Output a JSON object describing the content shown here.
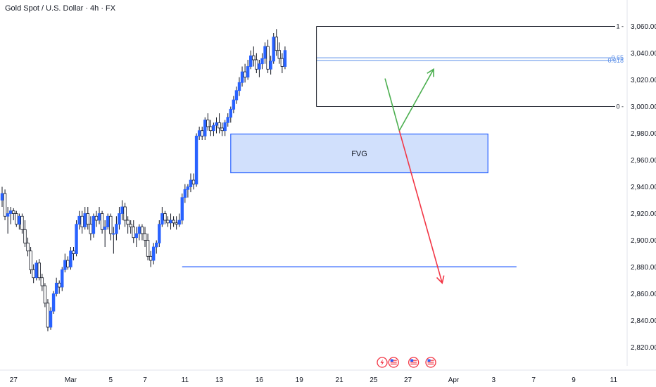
{
  "header": {
    "title": "Gold Spot / U.S. Dollar · 4h · FX"
  },
  "chart_data": {
    "type": "candlestick",
    "title": "Gold Spot / U.S. Dollar · 4h · FX",
    "ylim": [
      2810,
      3070
    ],
    "y_ticks": [
      2820,
      2840,
      2860,
      2880,
      2900,
      2920,
      2940,
      2960,
      2980,
      3000,
      3020,
      3040,
      3060
    ],
    "y_tick_labels": [
      "2,820.00",
      "2,840.00",
      "2,860.00",
      "2,880.00",
      "2,900.00",
      "2,920.00",
      "2,940.00",
      "2,960.00",
      "2,980.00",
      "3,000.00",
      "3,020.00",
      "3,040.00",
      "3,060.00"
    ],
    "x_tick_labels": [
      "27",
      "Mar",
      "5",
      "7",
      "11",
      "13",
      "16",
      "19",
      "21",
      "25",
      "27",
      "Apr",
      "3",
      "7",
      "9",
      "11"
    ],
    "x_tick_index": [
      4,
      24,
      38,
      50,
      64,
      76,
      90,
      104,
      118,
      130,
      142,
      158,
      172,
      186,
      200,
      214
    ],
    "colors": {
      "up": "#2962ff",
      "down": "#ffffff",
      "wick": "#131722",
      "fvg_fill": "#d1e0fc",
      "fvg_border": "#2962ff",
      "green_arrow": "#4caf50",
      "red_arrow": "#f23645",
      "fib_line": "#131722",
      "fib_blue": "#5b8fe8"
    },
    "fvg": {
      "label": "FVG",
      "top": 2979.5,
      "bottom": 2950.5,
      "start_index": 80,
      "end_index": 170
    },
    "support_line": {
      "value": 2880.2,
      "start_index": 63,
      "end_index": 180
    },
    "fib_levels": [
      {
        "label": "1",
        "value": 3060.0,
        "start_index": 110,
        "end_index": 214
      },
      {
        "label": "0.65",
        "value": 3036.5,
        "start_index": 110,
        "end_index": 214
      },
      {
        "label": "0.618",
        "value": 3034.5,
        "start_index": 110,
        "end_index": 214
      },
      {
        "label": "0",
        "value": 3000.0,
        "start_index": 110,
        "end_index": 214
      }
    ],
    "green_path": [
      {
        "index": 134,
        "value": 3021
      },
      {
        "index": 139,
        "value": 2982
      },
      {
        "index": 151,
        "value": 3028
      }
    ],
    "red_path": [
      {
        "index": 139,
        "value": 2982
      },
      {
        "index": 154,
        "value": 2868
      }
    ],
    "event_icons": [
      "lightning-icon",
      "us-flag-icon",
      "us-flag-icon",
      "us-flag-icon"
    ],
    "event_icon_index": [
      133,
      137,
      144,
      150
    ],
    "candles": [
      [
        2930,
        2940,
        2925,
        2935
      ],
      [
        2935,
        2938,
        2915,
        2918
      ],
      [
        2918,
        2925,
        2905,
        2920
      ],
      [
        2920,
        2925,
        2912,
        2922
      ],
      [
        2922,
        2924,
        2915,
        2920
      ],
      [
        2920,
        2922,
        2910,
        2912
      ],
      [
        2912,
        2920,
        2908,
        2918
      ],
      [
        2918,
        2920,
        2905,
        2908
      ],
      [
        2908,
        2915,
        2895,
        2898
      ],
      [
        2898,
        2902,
        2888,
        2892
      ],
      [
        2892,
        2895,
        2875,
        2878
      ],
      [
        2878,
        2882,
        2868,
        2872
      ],
      [
        2872,
        2885,
        2870,
        2883
      ],
      [
        2883,
        2886,
        2870,
        2872
      ],
      [
        2872,
        2875,
        2862,
        2866
      ],
      [
        2866,
        2868,
        2850,
        2853
      ],
      [
        2853,
        2856,
        2832,
        2835
      ],
      [
        2835,
        2850,
        2833,
        2847
      ],
      [
        2847,
        2862,
        2845,
        2860
      ],
      [
        2860,
        2872,
        2858,
        2868
      ],
      [
        2868,
        2870,
        2860,
        2865
      ],
      [
        2865,
        2880,
        2862,
        2878
      ],
      [
        2878,
        2890,
        2876,
        2885
      ],
      [
        2885,
        2888,
        2878,
        2880
      ],
      [
        2880,
        2895,
        2878,
        2892
      ],
      [
        2892,
        2895,
        2885,
        2890
      ],
      [
        2890,
        2915,
        2888,
        2912
      ],
      [
        2912,
        2922,
        2908,
        2918
      ],
      [
        2918,
        2922,
        2905,
        2910
      ],
      [
        2910,
        2925,
        2908,
        2920
      ],
      [
        2920,
        2925,
        2908,
        2912
      ],
      [
        2912,
        2918,
        2900,
        2905
      ],
      [
        2905,
        2920,
        2902,
        2918
      ],
      [
        2918,
        2922,
        2910,
        2915
      ],
      [
        2915,
        2925,
        2912,
        2920
      ],
      [
        2920,
        2922,
        2905,
        2908
      ],
      [
        2908,
        2915,
        2895,
        2910
      ],
      [
        2910,
        2920,
        2908,
        2918
      ],
      [
        2918,
        2920,
        2900,
        2905
      ],
      [
        2905,
        2910,
        2890,
        2905
      ],
      [
        2905,
        2918,
        2900,
        2912
      ],
      [
        2912,
        2925,
        2908,
        2920
      ],
      [
        2920,
        2930,
        2915,
        2925
      ],
      [
        2925,
        2928,
        2910,
        2915
      ],
      [
        2915,
        2918,
        2905,
        2912
      ],
      [
        2912,
        2915,
        2905,
        2910
      ],
      [
        2910,
        2915,
        2898,
        2902
      ],
      [
        2902,
        2910,
        2895,
        2905
      ],
      [
        2905,
        2912,
        2900,
        2910
      ],
      [
        2910,
        2912,
        2900,
        2905
      ],
      [
        2905,
        2910,
        2895,
        2900
      ],
      [
        2900,
        2905,
        2885,
        2888
      ],
      [
        2888,
        2892,
        2880,
        2885
      ],
      [
        2885,
        2898,
        2882,
        2895
      ],
      [
        2895,
        2900,
        2890,
        2898
      ],
      [
        2898,
        2915,
        2895,
        2912
      ],
      [
        2912,
        2925,
        2910,
        2920
      ],
      [
        2920,
        2922,
        2912,
        2915
      ],
      [
        2915,
        2918,
        2910,
        2913
      ],
      [
        2913,
        2920,
        2908,
        2915
      ],
      [
        2915,
        2918,
        2910,
        2913
      ],
      [
        2913,
        2918,
        2908,
        2912
      ],
      [
        2912,
        2920,
        2910,
        2915
      ],
      [
        2915,
        2935,
        2912,
        2932
      ],
      [
        2932,
        2942,
        2928,
        2938
      ],
      [
        2938,
        2942,
        2932,
        2940
      ],
      [
        2940,
        2950,
        2936,
        2945
      ],
      [
        2945,
        2950,
        2938,
        2942
      ],
      [
        2942,
        2980,
        2940,
        2978
      ],
      [
        2978,
        2985,
        2975,
        2982
      ],
      [
        2982,
        2985,
        2975,
        2978
      ],
      [
        2978,
        2992,
        2975,
        2990
      ],
      [
        2990,
        2995,
        2982,
        2985
      ],
      [
        2985,
        2990,
        2978,
        2982
      ],
      [
        2982,
        2988,
        2978,
        2986
      ],
      [
        2986,
        2992,
        2980,
        2988
      ],
      [
        2988,
        2995,
        2980,
        2984
      ],
      [
        2984,
        2988,
        2978,
        2982
      ],
      [
        2982,
        2990,
        2978,
        2988
      ],
      [
        2988,
        2995,
        2985,
        2992
      ],
      [
        2992,
        3000,
        2988,
        2998
      ],
      [
        2998,
        3008,
        2995,
        3005
      ],
      [
        3005,
        3015,
        3002,
        3012
      ],
      [
        3012,
        3022,
        3008,
        3018
      ],
      [
        3018,
        3030,
        3015,
        3026
      ],
      [
        3026,
        3032,
        3018,
        3022
      ],
      [
        3022,
        3035,
        3020,
        3030
      ],
      [
        3030,
        3042,
        3028,
        3038
      ],
      [
        3038,
        3045,
        3030,
        3035
      ],
      [
        3035,
        3040,
        3025,
        3028
      ],
      [
        3028,
        3035,
        3022,
        3032
      ],
      [
        3032,
        3040,
        3028,
        3036
      ],
      [
        3036,
        3048,
        3032,
        3045
      ],
      [
        3045,
        3050,
        3025,
        3028
      ],
      [
        3028,
        3038,
        3024,
        3034
      ],
      [
        3034,
        3055,
        3032,
        3052
      ],
      [
        3052,
        3058,
        3038,
        3042
      ],
      [
        3042,
        3048,
        3032,
        3036
      ],
      [
        3036,
        3040,
        3025,
        3030
      ],
      [
        3030,
        3045,
        3028,
        3042
      ]
    ]
  }
}
